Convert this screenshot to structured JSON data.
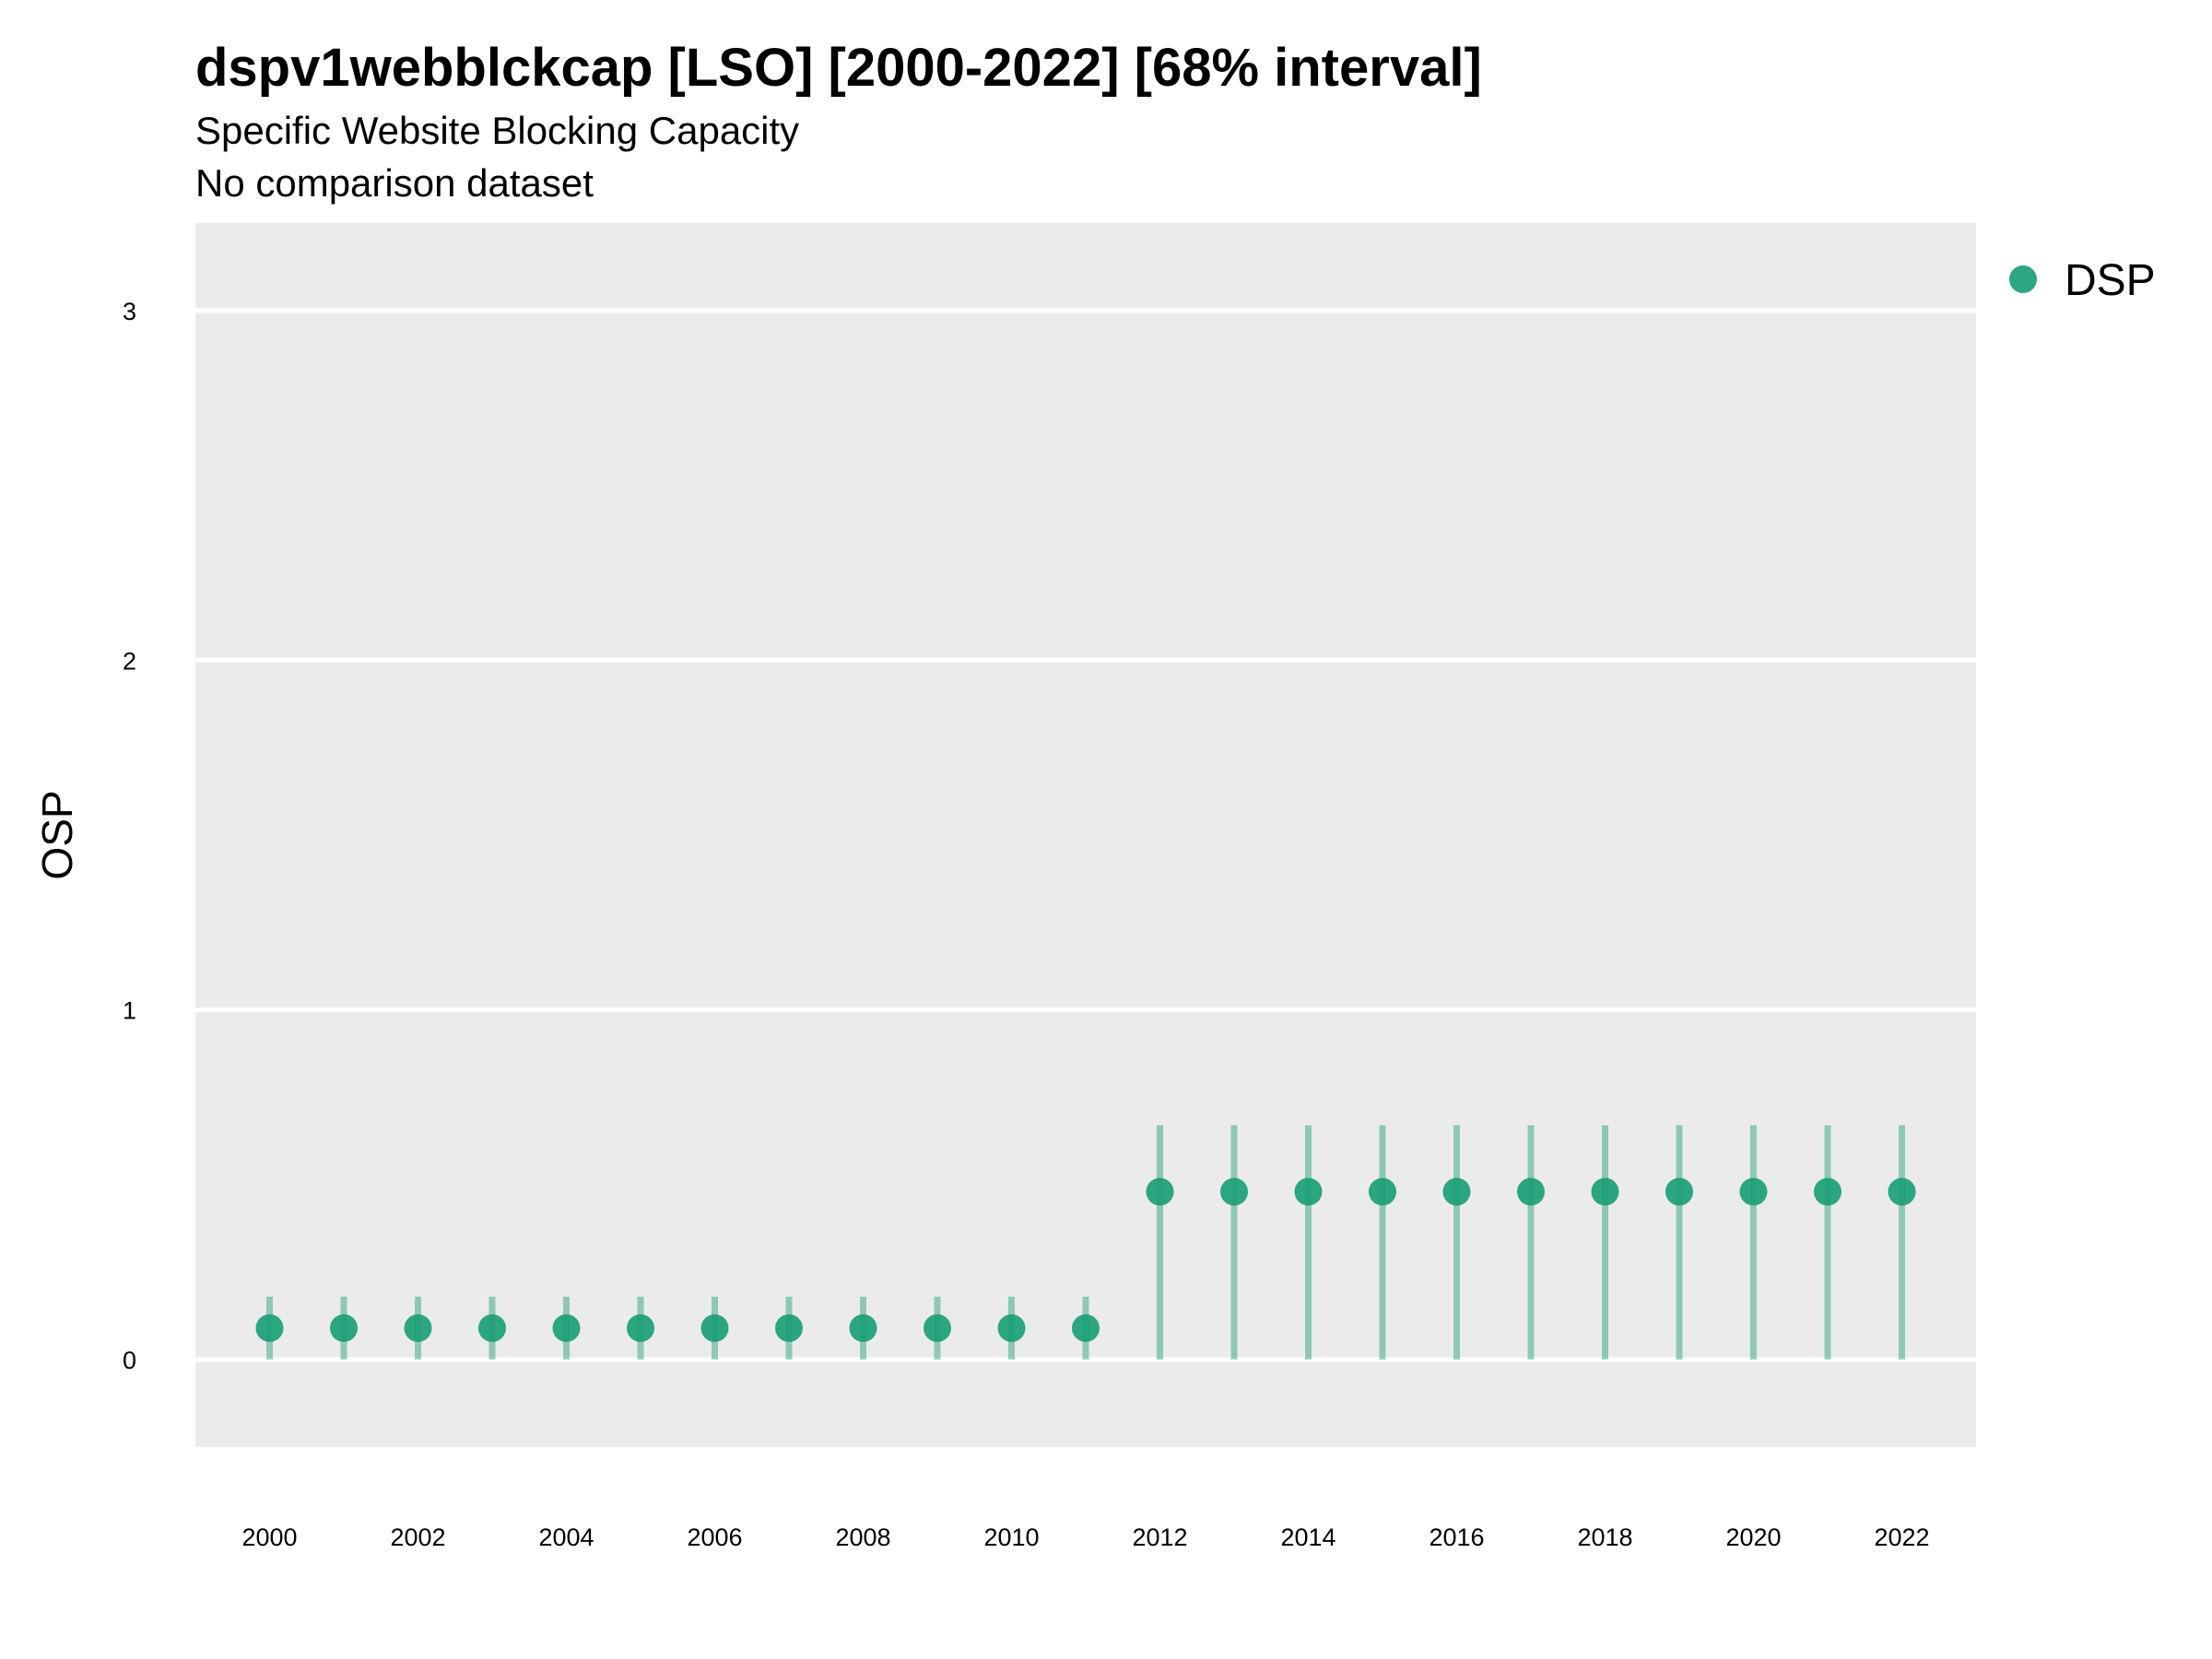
{
  "chart_data": {
    "type": "scatter",
    "title": "dspv1webblckcap [LSO] [2000-2022] [68% interval]",
    "subtitle": "Specific Website Blocking Capacity",
    "caption": "No comparison dataset",
    "xlabel": "",
    "ylabel": "OSP",
    "xlim": [
      1999,
      2023
    ],
    "ylim": [
      -0.25,
      3.25
    ],
    "grid": true,
    "legend_position": "top-right",
    "x_ticks": [
      "2000",
      "2002",
      "2004",
      "2006",
      "2008",
      "2010",
      "2012",
      "2014",
      "2016",
      "2018",
      "2020",
      "2022"
    ],
    "y_ticks": [
      "0",
      "1",
      "2",
      "3"
    ],
    "series": [
      {
        "name": "DSP",
        "color": "#1b9e77",
        "x": [
          2000,
          2001,
          2002,
          2003,
          2004,
          2005,
          2006,
          2007,
          2008,
          2009,
          2010,
          2011,
          2012,
          2013,
          2014,
          2015,
          2016,
          2017,
          2018,
          2019,
          2020,
          2021,
          2022
        ],
        "values": [
          0.09,
          0.09,
          0.09,
          0.09,
          0.09,
          0.09,
          0.09,
          0.09,
          0.09,
          0.09,
          0.09,
          0.09,
          0.48,
          0.48,
          0.48,
          0.48,
          0.48,
          0.48,
          0.48,
          0.48,
          0.48,
          0.48,
          0.48
        ],
        "lower": [
          0.0,
          0.0,
          0.0,
          0.0,
          0.0,
          0.0,
          0.0,
          0.0,
          0.0,
          0.0,
          0.0,
          0.0,
          0.0,
          0.0,
          0.0,
          0.0,
          0.0,
          0.0,
          0.0,
          0.0,
          0.0,
          0.0,
          0.0
        ],
        "upper": [
          0.18,
          0.18,
          0.18,
          0.18,
          0.18,
          0.18,
          0.18,
          0.18,
          0.18,
          0.18,
          0.18,
          0.18,
          0.67,
          0.67,
          0.67,
          0.67,
          0.67,
          0.67,
          0.67,
          0.67,
          0.67,
          0.67,
          0.67
        ]
      }
    ]
  },
  "colors": {
    "panel": "#ebebeb",
    "gridline": "#ffffff",
    "point": "#1b9e77"
  }
}
